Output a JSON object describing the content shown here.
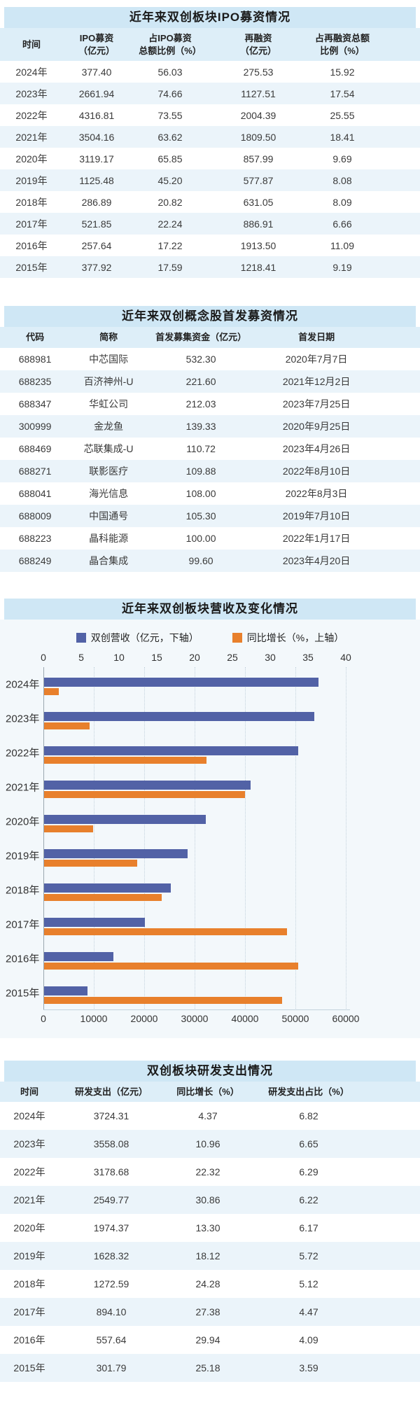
{
  "colors": {
    "title_band": "#cfe7f5",
    "header_band": "#ddeef8",
    "row_stripe": "#ebf4fa",
    "revenue_bar": "#5262a6",
    "growth_bar": "#e8802c"
  },
  "ipo_table": {
    "title": "近年来双创板块IPO募资情况",
    "columns": [
      "时间",
      "IPO募资\n（亿元）",
      "占IPO募资\n总额比例（%）",
      "再融资\n（亿元）",
      "占再融资总额\n比例（%）"
    ],
    "rows": [
      [
        "2024年",
        "377.40",
        "56.03",
        "275.53",
        "15.92"
      ],
      [
        "2023年",
        "2661.94",
        "74.66",
        "1127.51",
        "17.54"
      ],
      [
        "2022年",
        "4316.81",
        "73.55",
        "2004.39",
        "25.55"
      ],
      [
        "2021年",
        "3504.16",
        "63.62",
        "1809.50",
        "18.41"
      ],
      [
        "2020年",
        "3119.17",
        "65.85",
        "857.99",
        "9.69"
      ],
      [
        "2019年",
        "1125.48",
        "45.20",
        "577.87",
        "8.08"
      ],
      [
        "2018年",
        "286.89",
        "20.82",
        "631.05",
        "8.09"
      ],
      [
        "2017年",
        "521.85",
        "22.24",
        "886.91",
        "6.66"
      ],
      [
        "2016年",
        "257.64",
        "17.22",
        "1913.50",
        "11.09"
      ],
      [
        "2015年",
        "377.92",
        "17.59",
        "1218.41",
        "9.19"
      ]
    ]
  },
  "concept_table": {
    "title": "近年来双创概念股首发募资情况",
    "columns": [
      "代码",
      "简称",
      "首发募集资金（亿元）",
      "首发日期"
    ],
    "rows": [
      [
        "688981",
        "中芯国际",
        "532.30",
        "2020年7月7日"
      ],
      [
        "688235",
        "百济神州-U",
        "221.60",
        "2021年12月2日"
      ],
      [
        "688347",
        "华虹公司",
        "212.03",
        "2023年7月25日"
      ],
      [
        "300999",
        "金龙鱼",
        "139.33",
        "2020年9月25日"
      ],
      [
        "688469",
        "芯联集成-U",
        "110.72",
        "2023年4月26日"
      ],
      [
        "688271",
        "联影医疗",
        "109.88",
        "2022年8月10日"
      ],
      [
        "688041",
        "海光信息",
        "108.00",
        "2022年8月3日"
      ],
      [
        "688009",
        "中国通号",
        "105.30",
        "2019年7月10日"
      ],
      [
        "688223",
        "晶科能源",
        "100.00",
        "2022年1月17日"
      ],
      [
        "688249",
        "晶合集成",
        "99.60",
        "2023年4月20日"
      ]
    ]
  },
  "chart_data": {
    "type": "bar",
    "orientation": "horizontal",
    "title": "近年来双创板块营收及变化情况",
    "categories": [
      "2024年",
      "2023年",
      "2022年",
      "2021年",
      "2020年",
      "2019年",
      "2018年",
      "2017年",
      "2016年",
      "2015年"
    ],
    "series": [
      {
        "name": "双创营收（亿元，下轴）",
        "axis": "bottom",
        "color": "#5262a6",
        "values": [
          54400,
          53600,
          50400,
          41000,
          32100,
          28500,
          25100,
          20000,
          13800,
          8600
        ]
      },
      {
        "name": "同比增长（%，上轴）",
        "axis": "top",
        "color": "#e8802c",
        "values": [
          1.9,
          6.0,
          21.5,
          26.6,
          6.5,
          12.3,
          15.6,
          32.1,
          33.6,
          31.5
        ]
      }
    ],
    "top_axis": {
      "label": "同比增长（%）",
      "ticks": [
        0,
        5,
        10,
        15,
        20,
        25,
        30,
        35,
        40
      ],
      "range": [
        0,
        40
      ]
    },
    "bottom_axis": {
      "label": "双创营收（亿元）",
      "ticks": [
        0,
        10000,
        20000,
        30000,
        40000,
        50000,
        60000
      ],
      "range": [
        0,
        60000
      ]
    },
    "grid": true,
    "legend_position": "top"
  },
  "rd_table": {
    "title": "双创板块研发支出情况",
    "columns": [
      "时间",
      "研发支出（亿元）",
      "同比增长（%）",
      "研发支出占比（%）"
    ],
    "rows": [
      [
        "2024年",
        "3724.31",
        "4.37",
        "6.82"
      ],
      [
        "2023年",
        "3558.08",
        "10.96",
        "6.65"
      ],
      [
        "2022年",
        "3178.68",
        "22.32",
        "6.29"
      ],
      [
        "2021年",
        "2549.77",
        "30.86",
        "6.22"
      ],
      [
        "2020年",
        "1974.37",
        "13.30",
        "6.17"
      ],
      [
        "2019年",
        "1628.32",
        "18.12",
        "5.72"
      ],
      [
        "2018年",
        "1272.59",
        "24.28",
        "5.12"
      ],
      [
        "2017年",
        "894.10",
        "27.38",
        "4.47"
      ],
      [
        "2016年",
        "557.64",
        "29.94",
        "4.09"
      ],
      [
        "2015年",
        "301.79",
        "25.18",
        "3.59"
      ]
    ]
  }
}
